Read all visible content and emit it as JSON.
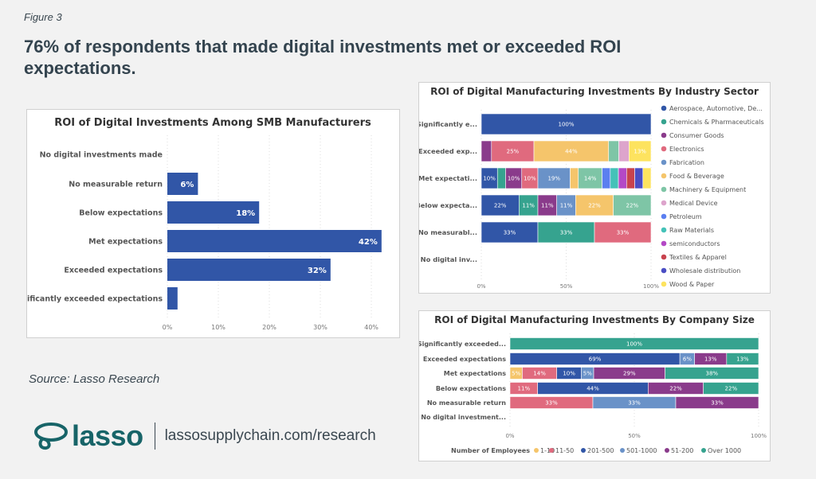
{
  "figure_label": "Figure 3",
  "headline": "76% of respondents that made digital investments met or exceeded ROI expectations.",
  "source": "Source: Lasso Research",
  "logo": {
    "text": "lasso",
    "url": "lassosupplychain.com/research"
  },
  "colors": {
    "Aerospace, Automotive, De...": "#3156a7",
    "Chemicals & Pharmaceuticals": "#36a38f",
    "Consumer Goods": "#8a3b8b",
    "Electronics": "#e06a7e",
    "Fabrication": "#6a92c8",
    "Food & Beverage": "#f5c56b",
    "Machinery & Equipment": "#7ec5a6",
    "Medical Device": "#dda4cc",
    "Petroleum": "#5b7ff0",
    "Raw Materials": "#44c2b8",
    "semiconductors": "#b449c6",
    "Textiles & Apparel": "#c8434e",
    "Wholesale distribution": "#4a4ec4",
    "Wood & Paper": "#fde35f",
    "1-10": "#f5c56b",
    "11-50": "#e06a7e",
    "201-500": "#3156a7",
    "501-1000": "#6a92c8",
    "51-200": "#8a3b8b",
    "Over 1000": "#36a38f"
  },
  "chart_data": [
    {
      "type": "bar",
      "orientation": "horizontal",
      "title": "ROI of Digital Investments Among SMB Manufacturers",
      "categories": [
        "No digital investments made",
        "No measurable return",
        "Below expectations",
        "Met expectations",
        "Exceeded expectations",
        "Significantly exceeded expectations"
      ],
      "values": [
        0,
        6,
        18,
        42,
        32,
        2
      ],
      "data_labels": [
        "",
        "6%",
        "18%",
        "42%",
        "32%",
        ""
      ],
      "xlim": [
        0,
        42
      ],
      "xticks": [
        "0%",
        "10%",
        "20%",
        "30%",
        "40%"
      ],
      "xtick_values": [
        0,
        10,
        20,
        30,
        40
      ],
      "grid": true,
      "color": "#3156a7"
    },
    {
      "type": "bar",
      "orientation": "horizontal",
      "stacked": "100%",
      "title": "ROI of Digital Manufacturing Investments By Industry Sector",
      "categories": [
        "Significantly e...",
        "Exceeded exp...",
        "Met expectati...",
        "Below expecta...",
        "No measurabl...",
        "No digital inv..."
      ],
      "xticks": [
        "0%",
        "50%",
        "100%"
      ],
      "legend_position": "right",
      "series": [
        {
          "name": "Aerospace, Automotive, De...",
          "values": [
            100,
            0,
            9.5,
            22,
            33,
            0
          ]
        },
        {
          "name": "Chemicals & Pharmaceuticals",
          "values": [
            0,
            0,
            4.8,
            11,
            33,
            0
          ]
        },
        {
          "name": "Consumer Goods",
          "values": [
            0,
            6,
            9.5,
            11,
            0,
            0
          ]
        },
        {
          "name": "Electronics",
          "values": [
            0,
            25,
            9.5,
            0,
            33,
            0
          ]
        },
        {
          "name": "Fabrication",
          "values": [
            0,
            0,
            19,
            11,
            0,
            0
          ]
        },
        {
          "name": "Food & Beverage",
          "values": [
            0,
            44,
            4.8,
            22,
            0,
            0
          ]
        },
        {
          "name": "Machinery & Equipment",
          "values": [
            0,
            6,
            14,
            22,
            0,
            0
          ]
        },
        {
          "name": "Medical Device",
          "values": [
            0,
            6,
            0,
            0,
            0,
            0
          ]
        },
        {
          "name": "Petroleum",
          "values": [
            0,
            0,
            4.8,
            0,
            0,
            0
          ]
        },
        {
          "name": "Raw Materials",
          "values": [
            0,
            0,
            4.8,
            0,
            0,
            0
          ]
        },
        {
          "name": "semiconductors",
          "values": [
            0,
            0,
            4.8,
            0,
            0,
            0
          ]
        },
        {
          "name": "Textiles & Apparel",
          "values": [
            0,
            0,
            4.8,
            0,
            0,
            0
          ]
        },
        {
          "name": "Wholesale distribution",
          "values": [
            0,
            0,
            4.8,
            0,
            0,
            0
          ]
        },
        {
          "name": "Wood & Paper",
          "values": [
            0,
            13,
            4.8,
            0,
            0,
            0
          ]
        }
      ]
    },
    {
      "type": "bar",
      "orientation": "horizontal",
      "stacked": "100%",
      "title": "ROI of Digital Manufacturing Investments By Company Size",
      "categories": [
        "Significantly exceeded...",
        "Exceeded expectations",
        "Met expectations",
        "Below expectations",
        "No measurable return",
        "No digital investment..."
      ],
      "xticks": [
        "0%",
        "50%",
        "100%"
      ],
      "legend_title": "Number of Employees",
      "legend_position": "bottom",
      "series": [
        {
          "name": "1-10",
          "values": [
            0,
            0,
            5,
            0,
            0,
            0
          ]
        },
        {
          "name": "11-50",
          "values": [
            0,
            0,
            14,
            11,
            33,
            0
          ]
        },
        {
          "name": "201-500",
          "values": [
            0,
            69,
            10,
            44,
            0,
            0
          ]
        },
        {
          "name": "501-1000",
          "values": [
            0,
            6,
            5,
            0,
            33,
            0
          ]
        },
        {
          "name": "51-200",
          "values": [
            0,
            13,
            29,
            22,
            33,
            0
          ]
        },
        {
          "name": "Over 1000",
          "values": [
            100,
            13,
            38,
            22,
            0,
            0
          ]
        }
      ]
    }
  ]
}
